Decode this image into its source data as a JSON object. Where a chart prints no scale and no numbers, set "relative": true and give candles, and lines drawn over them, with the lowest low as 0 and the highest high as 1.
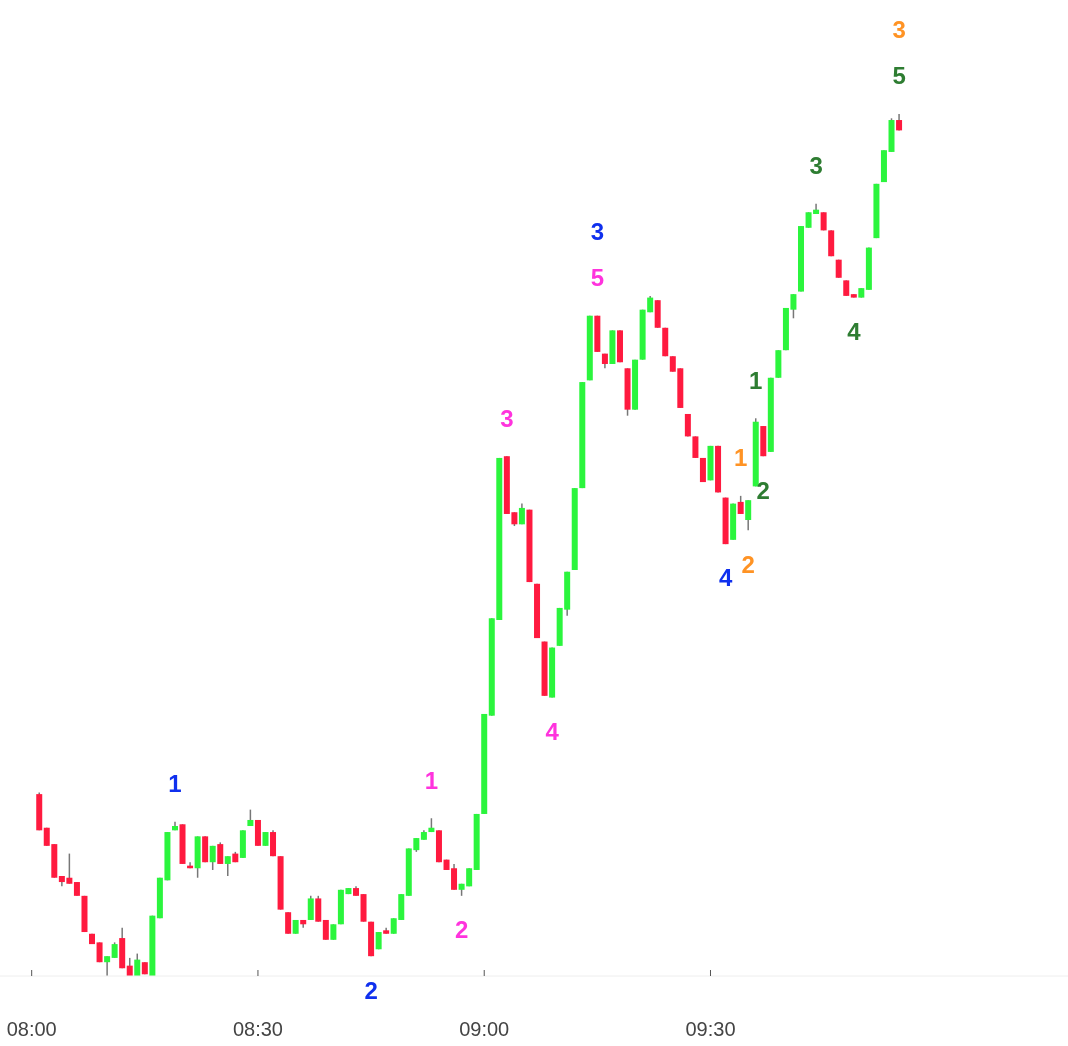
{
  "chart_data": {
    "type": "candlestick",
    "relative": true,
    "x": [
      8.0167,
      8.0333,
      8.05,
      8.0667,
      8.0833,
      8.1,
      8.1167,
      8.1333,
      8.15,
      8.1667,
      8.1833,
      8.2,
      8.2167,
      8.2333,
      8.25,
      8.2667,
      8.2833,
      8.3,
      8.3167,
      8.3333,
      8.35,
      8.3667,
      8.3833,
      8.4,
      8.4167,
      8.4333,
      8.45,
      8.4667,
      8.4833,
      8.5,
      8.5167,
      8.5333,
      8.55,
      8.5667,
      8.5833,
      8.6,
      8.6167,
      8.6333,
      8.65,
      8.6667,
      8.6833,
      8.7,
      8.7167,
      8.7333,
      8.75,
      8.7667,
      8.7833,
      8.8,
      8.8167,
      8.8333,
      8.85,
      8.8667,
      8.8833,
      8.9,
      8.9167,
      8.9333,
      8.95,
      8.9667,
      8.9833,
      9,
      9.0167,
      9.0333,
      9.05,
      9.0667,
      9.0833,
      9.1,
      9.1167,
      9.1333,
      9.15,
      9.1667,
      9.1833,
      9.2,
      9.2167,
      9.2333,
      9.25,
      9.2667,
      9.2833,
      9.3,
      9.3167,
      9.3333,
      9.35,
      9.3667,
      9.3833,
      9.4,
      9.4167,
      9.4333,
      9.45,
      9.4667,
      9.4833,
      9.5,
      9.5167,
      9.5333,
      9.55,
      9.5667,
      9.5833,
      9.6,
      9.6167,
      9.6333,
      9.65,
      9.6667,
      9.6833,
      9.7,
      9.7167,
      9.7333,
      9.75,
      9.7667,
      9.7833,
      9.8,
      9.8167,
      9.8333,
      9.85,
      9.8667,
      9.8833,
      9.9,
      9.9167
    ],
    "ohlc": [
      [
        0.211,
        0.213,
        0.169,
        0.169
      ],
      [
        0.172,
        0.172,
        0.151,
        0.151
      ],
      [
        0.153,
        0.153,
        0.114,
        0.114
      ],
      [
        0.116,
        0.116,
        0.104,
        0.109
      ],
      [
        0.114,
        0.142,
        0.107,
        0.107
      ],
      [
        0.109,
        0.109,
        0.093,
        0.093
      ],
      [
        0.093,
        0.093,
        0.051,
        0.051
      ],
      [
        0.049,
        0.049,
        0.037,
        0.037
      ],
      [
        0.039,
        0.039,
        0.016,
        0.016
      ],
      [
        0.016,
        0.023,
        0,
        0.023
      ],
      [
        0.021,
        0.039,
        0.021,
        0.037
      ],
      [
        0.044,
        0.056,
        0.009,
        0.009
      ],
      [
        0.012,
        0.021,
        0,
        0
      ],
      [
        0,
        0.026,
        0,
        0.019
      ],
      [
        0.016,
        0.016,
        0.002,
        0.002
      ],
      [
        0,
        0.07,
        0,
        0.07
      ],
      [
        0.067,
        0.114,
        0.067,
        0.114
      ],
      [
        0.111,
        0.167,
        0.111,
        0.167
      ],
      [
        0.169,
        0.179,
        0.169,
        0.174
      ],
      [
        0.176,
        0.176,
        0.13,
        0.13
      ],
      [
        0.128,
        0.132,
        0.125,
        0.125
      ],
      [
        0.125,
        0.162,
        0.114,
        0.162
      ],
      [
        0.162,
        0.162,
        0.132,
        0.132
      ],
      [
        0.132,
        0.151,
        0.123,
        0.151
      ],
      [
        0.153,
        0.155,
        0.13,
        0.13
      ],
      [
        0.13,
        0.139,
        0.116,
        0.139
      ],
      [
        0.142,
        0.144,
        0.132,
        0.132
      ],
      [
        0.137,
        0.169,
        0.137,
        0.169
      ],
      [
        0.174,
        0.193,
        0.174,
        0.181
      ],
      [
        0.181,
        0.181,
        0.151,
        0.151
      ],
      [
        0.151,
        0.167,
        0.151,
        0.167
      ],
      [
        0.167,
        0.169,
        0.139,
        0.139
      ],
      [
        0.139,
        0.139,
        0.077,
        0.077
      ],
      [
        0.074,
        0.074,
        0.049,
        0.049
      ],
      [
        0.049,
        0.065,
        0.049,
        0.065
      ],
      [
        0.065,
        0.065,
        0.056,
        0.06
      ],
      [
        0.065,
        0.093,
        0.065,
        0.09
      ],
      [
        0.09,
        0.093,
        0.063,
        0.063
      ],
      [
        0.065,
        0.065,
        0.042,
        0.042
      ],
      [
        0.042,
        0.06,
        0.042,
        0.06
      ],
      [
        0.06,
        0.1,
        0.06,
        0.1
      ],
      [
        0.095,
        0.102,
        0.095,
        0.102
      ],
      [
        0.102,
        0.104,
        0.093,
        0.093
      ],
      [
        0.095,
        0.095,
        0.063,
        0.063
      ],
      [
        0.063,
        0.063,
        0.023,
        0.023
      ],
      [
        0.031,
        0.051,
        0.031,
        0.051
      ],
      [
        0.053,
        0.056,
        0.049,
        0.049
      ],
      [
        0.049,
        0.067,
        0.049,
        0.067
      ],
      [
        0.065,
        0.095,
        0.065,
        0.095
      ],
      [
        0.093,
        0.148,
        0.093,
        0.148
      ],
      [
        0.146,
        0.16,
        0.144,
        0.16
      ],
      [
        0.158,
        0.169,
        0.158,
        0.167
      ],
      [
        0.167,
        0.183,
        0.167,
        0.172
      ],
      [
        0.169,
        0.169,
        0.132,
        0.132
      ],
      [
        0.135,
        0.135,
        0.123,
        0.123
      ],
      [
        0.125,
        0.13,
        0.1,
        0.1
      ],
      [
        0.1,
        0.107,
        0.093,
        0.107
      ],
      [
        0.104,
        0.125,
        0.104,
        0.125
      ],
      [
        0.123,
        0.188,
        0.123,
        0.188
      ],
      [
        0.188,
        0.304,
        0.188,
        0.304
      ],
      [
        0.302,
        0.415,
        0.302,
        0.415
      ],
      [
        0.413,
        0.601,
        0.413,
        0.601
      ],
      [
        0.603,
        0.603,
        0.536,
        0.536
      ],
      [
        0.538,
        0.538,
        0.522,
        0.524
      ],
      [
        0.524,
        0.548,
        0.524,
        0.543
      ],
      [
        0.541,
        0.541,
        0.457,
        0.457
      ],
      [
        0.455,
        0.455,
        0.392,
        0.392
      ],
      [
        0.388,
        0.388,
        0.325,
        0.325
      ],
      [
        0.323,
        0.381,
        0.323,
        0.381
      ],
      [
        0.383,
        0.427,
        0.383,
        0.427
      ],
      [
        0.425,
        0.469,
        0.418,
        0.469
      ],
      [
        0.471,
        0.566,
        0.471,
        0.566
      ],
      [
        0.566,
        0.689,
        0.566,
        0.689
      ],
      [
        0.691,
        0.766,
        0.691,
        0.766
      ],
      [
        0.766,
        0.766,
        0.724,
        0.724
      ],
      [
        0.722,
        0.722,
        0.705,
        0.71
      ],
      [
        0.71,
        0.749,
        0.71,
        0.749
      ],
      [
        0.749,
        0.749,
        0.712,
        0.712
      ],
      [
        0.705,
        0.705,
        0.65,
        0.657
      ],
      [
        0.657,
        0.715,
        0.657,
        0.715
      ],
      [
        0.715,
        0.773,
        0.715,
        0.773
      ],
      [
        0.77,
        0.789,
        0.77,
        0.787
      ],
      [
        0.784,
        0.784,
        0.752,
        0.752
      ],
      [
        0.752,
        0.752,
        0.719,
        0.719
      ],
      [
        0.719,
        0.719,
        0.701,
        0.701
      ],
      [
        0.705,
        0.705,
        0.659,
        0.659
      ],
      [
        0.652,
        0.652,
        0.626,
        0.626
      ],
      [
        0.626,
        0.626,
        0.601,
        0.601
      ],
      [
        0.601,
        0.601,
        0.573,
        0.573
      ],
      [
        0.575,
        0.615,
        0.575,
        0.615
      ],
      [
        0.615,
        0.615,
        0.561,
        0.561
      ],
      [
        0.555,
        0.555,
        0.501,
        0.501
      ],
      [
        0.506,
        0.548,
        0.506,
        0.548
      ],
      [
        0.55,
        0.557,
        0.536,
        0.536
      ],
      [
        0.529,
        0.552,
        0.517,
        0.552
      ],
      [
        0.568,
        0.647,
        0.568,
        0.643
      ],
      [
        0.638,
        0.638,
        0.603,
        0.603
      ],
      [
        0.608,
        0.694,
        0.608,
        0.694
      ],
      [
        0.694,
        0.726,
        0.694,
        0.726
      ],
      [
        0.726,
        0.775,
        0.726,
        0.775
      ],
      [
        0.773,
        0.791,
        0.763,
        0.791
      ],
      [
        0.794,
        0.87,
        0.794,
        0.87
      ],
      [
        0.868,
        0.886,
        0.868,
        0.886
      ],
      [
        0.884,
        0.896,
        0.884,
        0.889
      ],
      [
        0.886,
        0.886,
        0.865,
        0.865
      ],
      [
        0.865,
        0.865,
        0.835,
        0.835
      ],
      [
        0.831,
        0.831,
        0.81,
        0.81
      ],
      [
        0.807,
        0.807,
        0.789,
        0.789
      ],
      [
        0.791,
        0.791,
        0.787,
        0.787
      ],
      [
        0.787,
        0.798,
        0.787,
        0.798
      ],
      [
        0.796,
        0.845,
        0.796,
        0.845
      ],
      [
        0.856,
        0.919,
        0.856,
        0.919
      ],
      [
        0.921,
        0.958,
        0.921,
        0.958
      ],
      [
        0.956,
        0.995,
        0.956,
        0.993
      ],
      [
        0.993,
        1,
        0.981,
        0.981
      ]
    ],
    "xlim": [
      7.93,
      10.29
    ],
    "xticks": [
      {
        "value": 8,
        "label": "08:00"
      },
      {
        "value": 8.5,
        "label": "08:30"
      },
      {
        "value": 9,
        "label": "09:00"
      },
      {
        "value": 9.5,
        "label": "09:30"
      }
    ],
    "tick_labels": "x",
    "grid": false,
    "annotations": [
      {
        "text": "1",
        "x": 8.3167,
        "y": 0.179
      },
      {
        "text": "2",
        "x": 8.75,
        "y": 0.023
      },
      {
        "text": "3",
        "x": 9.25,
        "y": 0.766
      },
      {
        "text": "4",
        "x": 9.5333,
        "y": 0.501
      },
      {
        "text": "1",
        "x": 9.5667,
        "y": 0.557
      },
      {
        "text": "2",
        "x": 9.5833,
        "y": 0.517
      },
      {
        "text": "3",
        "x": 9.9167,
        "y": 1
      },
      {
        "text": "1",
        "x": 9.6,
        "y": 0.647
      },
      {
        "text": "2",
        "x": 9.6167,
        "y": 0.603
      },
      {
        "text": "3",
        "x": 9.7333,
        "y": 0.896
      },
      {
        "text": "4",
        "x": 9.8167,
        "y": 0.787
      },
      {
        "text": "5",
        "x": 9.9167,
        "y": 1
      },
      {
        "text": "1",
        "x": 8.8833,
        "y": 0.183
      },
      {
        "text": "2",
        "x": 8.95,
        "y": 0.093
      },
      {
        "text": "3",
        "x": 9.05,
        "y": 0.603
      },
      {
        "text": "4",
        "x": 9.15,
        "y": 0.323
      },
      {
        "text": "5",
        "x": 9.25,
        "y": 0.766
      }
    ]
  }
}
